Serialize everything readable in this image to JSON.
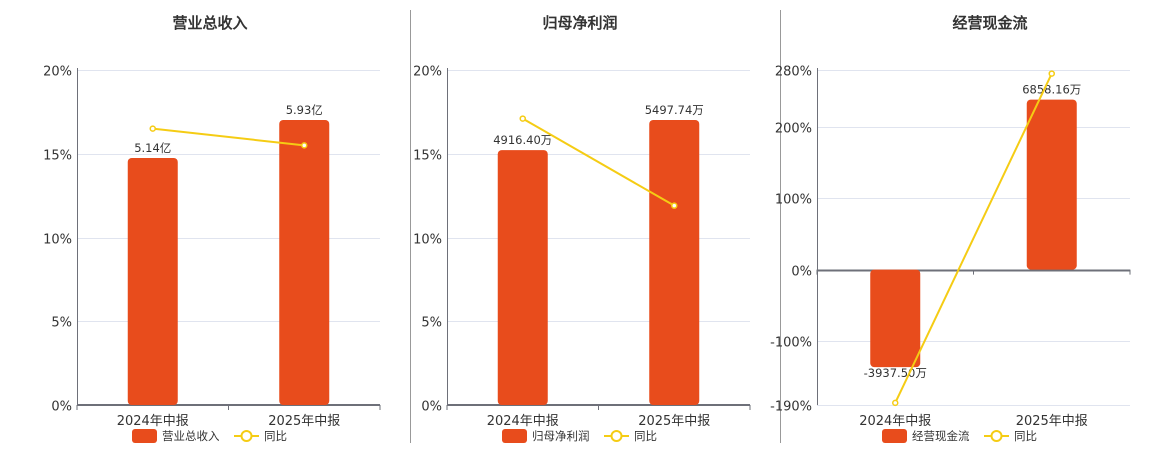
{
  "colors": {
    "bar": "#E84C1C",
    "line": "#F5CC14",
    "grid": "#E0E4EF",
    "axis": "#6E7079",
    "divider": "#999999"
  },
  "chart_data": [
    {
      "type": "bar+line",
      "title": "营业总收入",
      "categories": [
        "2024年中报",
        "2025年中报"
      ],
      "bar_series": {
        "name": "营业总收入",
        "values": [
          5.14,
          5.93
        ],
        "labels": [
          "5.14亿",
          "5.93亿"
        ],
        "unit": "亿"
      },
      "line_series": {
        "name": "同比",
        "values": [
          16.5,
          15.5
        ],
        "unit": "%"
      },
      "y_ticks": [
        "0%",
        "5%",
        "10%",
        "15%",
        "20%"
      ],
      "ylim": [
        0,
        20
      ],
      "legend": "bottom"
    },
    {
      "type": "bar+line",
      "title": "归母净利润",
      "categories": [
        "2024年中报",
        "2025年中报"
      ],
      "bar_series": {
        "name": "归母净利润",
        "values": [
          4916.4,
          5497.74
        ],
        "labels": [
          "4916.40万",
          "5497.74万"
        ],
        "unit": "万"
      },
      "line_series": {
        "name": "同比",
        "values": [
          17.1,
          11.9
        ],
        "unit": "%"
      },
      "y_ticks": [
        "0%",
        "5%",
        "10%",
        "15%",
        "20%"
      ],
      "ylim": [
        0,
        20
      ],
      "legend": "bottom"
    },
    {
      "type": "bar+line",
      "title": "经营现金流",
      "categories": [
        "2024年中报",
        "2025年中报"
      ],
      "bar_series": {
        "name": "经营现金流",
        "values": [
          -3937.5,
          6858.16
        ],
        "labels": [
          "-3937.50万",
          "6858.16万"
        ],
        "unit": "万"
      },
      "line_series": {
        "name": "同比",
        "values": [
          -187,
          275
        ],
        "unit": "%"
      },
      "y_ticks": [
        "-190%",
        "-100%",
        "0%",
        "100%",
        "200%",
        "280%"
      ],
      "y_tick_values": [
        -190,
        -100,
        0,
        100,
        200,
        280
      ],
      "ylim": [
        -190,
        280
      ],
      "legend": "bottom"
    }
  ]
}
